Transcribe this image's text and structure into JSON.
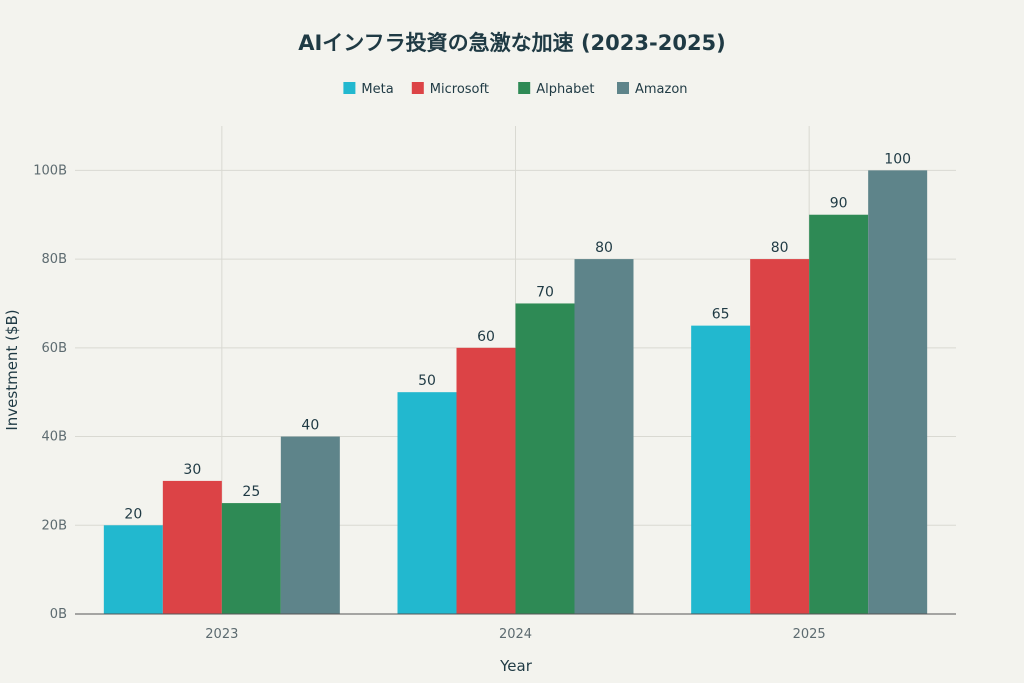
{
  "chart_data": {
    "type": "bar",
    "title": "AIインフラ投資の急激な加速 (2023-2025)",
    "xlabel": "Year",
    "ylabel": "Investment ($B)",
    "categories": [
      "2023",
      "2024",
      "2025"
    ],
    "series": [
      {
        "name": "Meta",
        "color": "#22b8cf",
        "values": [
          20,
          50,
          65
        ]
      },
      {
        "name": "Microsoft",
        "color": "#dc4346",
        "values": [
          30,
          60,
          80
        ]
      },
      {
        "name": "Alphabet",
        "color": "#2e8a55",
        "values": [
          25,
          70,
          90
        ]
      },
      {
        "name": "Amazon",
        "color": "#5e848a",
        "values": [
          40,
          80,
          100
        ]
      }
    ],
    "ylim": [
      0,
      110
    ],
    "yticks": [
      0,
      20,
      40,
      60,
      80,
      100
    ],
    "ytick_labels": [
      "0B",
      "20B",
      "40B",
      "60B",
      "80B",
      "100B"
    ],
    "grid": true,
    "legend_position": "top-center",
    "data_labels": true
  }
}
